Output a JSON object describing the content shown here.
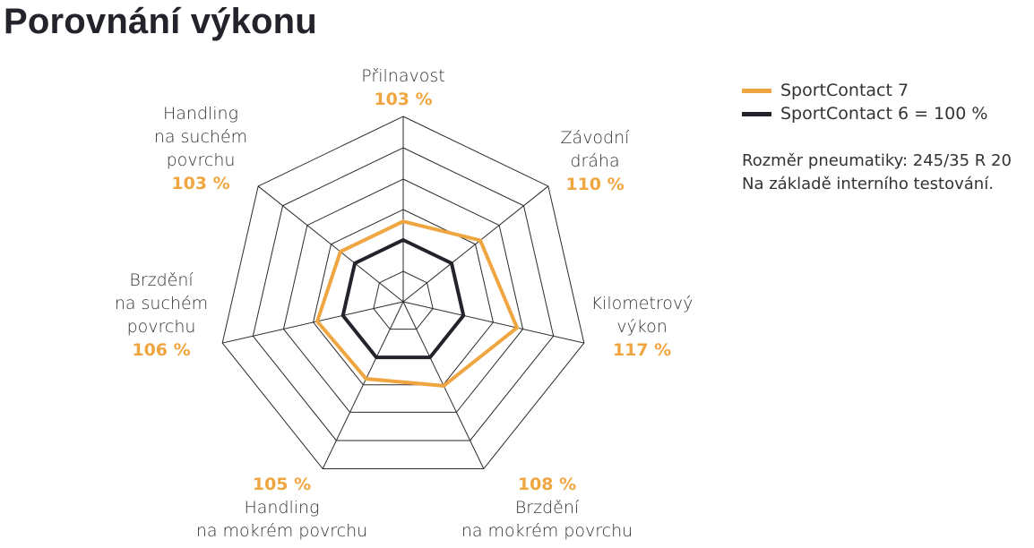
{
  "title": "Porovnání výkonu",
  "legend": {
    "items": [
      {
        "label": "SportContact 7",
        "color": "#f0a640"
      },
      {
        "label": "SportContact 6 = 100 %",
        "color": "#23242b"
      }
    ]
  },
  "notes": {
    "size": "Rozměr pneumatiky: 245/35 R 20",
    "basis": "Na základě interního testování."
  },
  "labels": [
    {
      "name": "Přilnavost",
      "lines": [
        "Přilnavost"
      ],
      "pct": "103 %"
    },
    {
      "name": "Závodní dráha",
      "lines": [
        "Závodní",
        "dráha"
      ],
      "pct": "110 %"
    },
    {
      "name": "Kilometrový výkon",
      "lines": [
        "Kilometrový",
        "výkon"
      ],
      "pct": "117 %"
    },
    {
      "name": "Brzdění na mokrém povrchu",
      "lines": [
        "Brzdění",
        "na mokrém povrchu"
      ],
      "pct": "108 %"
    },
    {
      "name": "Handling na mokrém povrchu",
      "lines": [
        "Handling",
        "na mokrém povrchu"
      ],
      "pct": "105 %"
    },
    {
      "name": "Brzdění na suchém povrchu",
      "lines": [
        "Brzdění",
        "na suchém",
        "povrchu"
      ],
      "pct": "106 %"
    },
    {
      "name": "Handling na suchém povrchu",
      "lines": [
        "Handling",
        "na suchém",
        "povrchu"
      ],
      "pct": "103 %"
    }
  ],
  "chart_data": {
    "type": "radar",
    "title": "Porovnání výkonu",
    "categories": [
      "Přilnavost",
      "Závodní dráha",
      "Kilometrový výkon",
      "Brzdění na mokrém povrchu",
      "Handling na mokrém povrchu",
      "Brzdění na suchém povrchu",
      "Handling na suchém povrchu"
    ],
    "series": [
      {
        "name": "SportContact 7",
        "values": [
          103,
          110,
          117,
          108,
          105,
          106,
          103
        ],
        "color": "#f0a640"
      },
      {
        "name": "SportContact 6 = 100 %",
        "values": [
          100,
          100,
          100,
          100,
          100,
          100,
          100
        ],
        "color": "#23242b"
      }
    ],
    "rings": 6,
    "grid": true,
    "legend_position": "right",
    "annotations": [
      "Rozměr pneumatiky: 245/35 R 20",
      "Na základě interního testování."
    ]
  }
}
